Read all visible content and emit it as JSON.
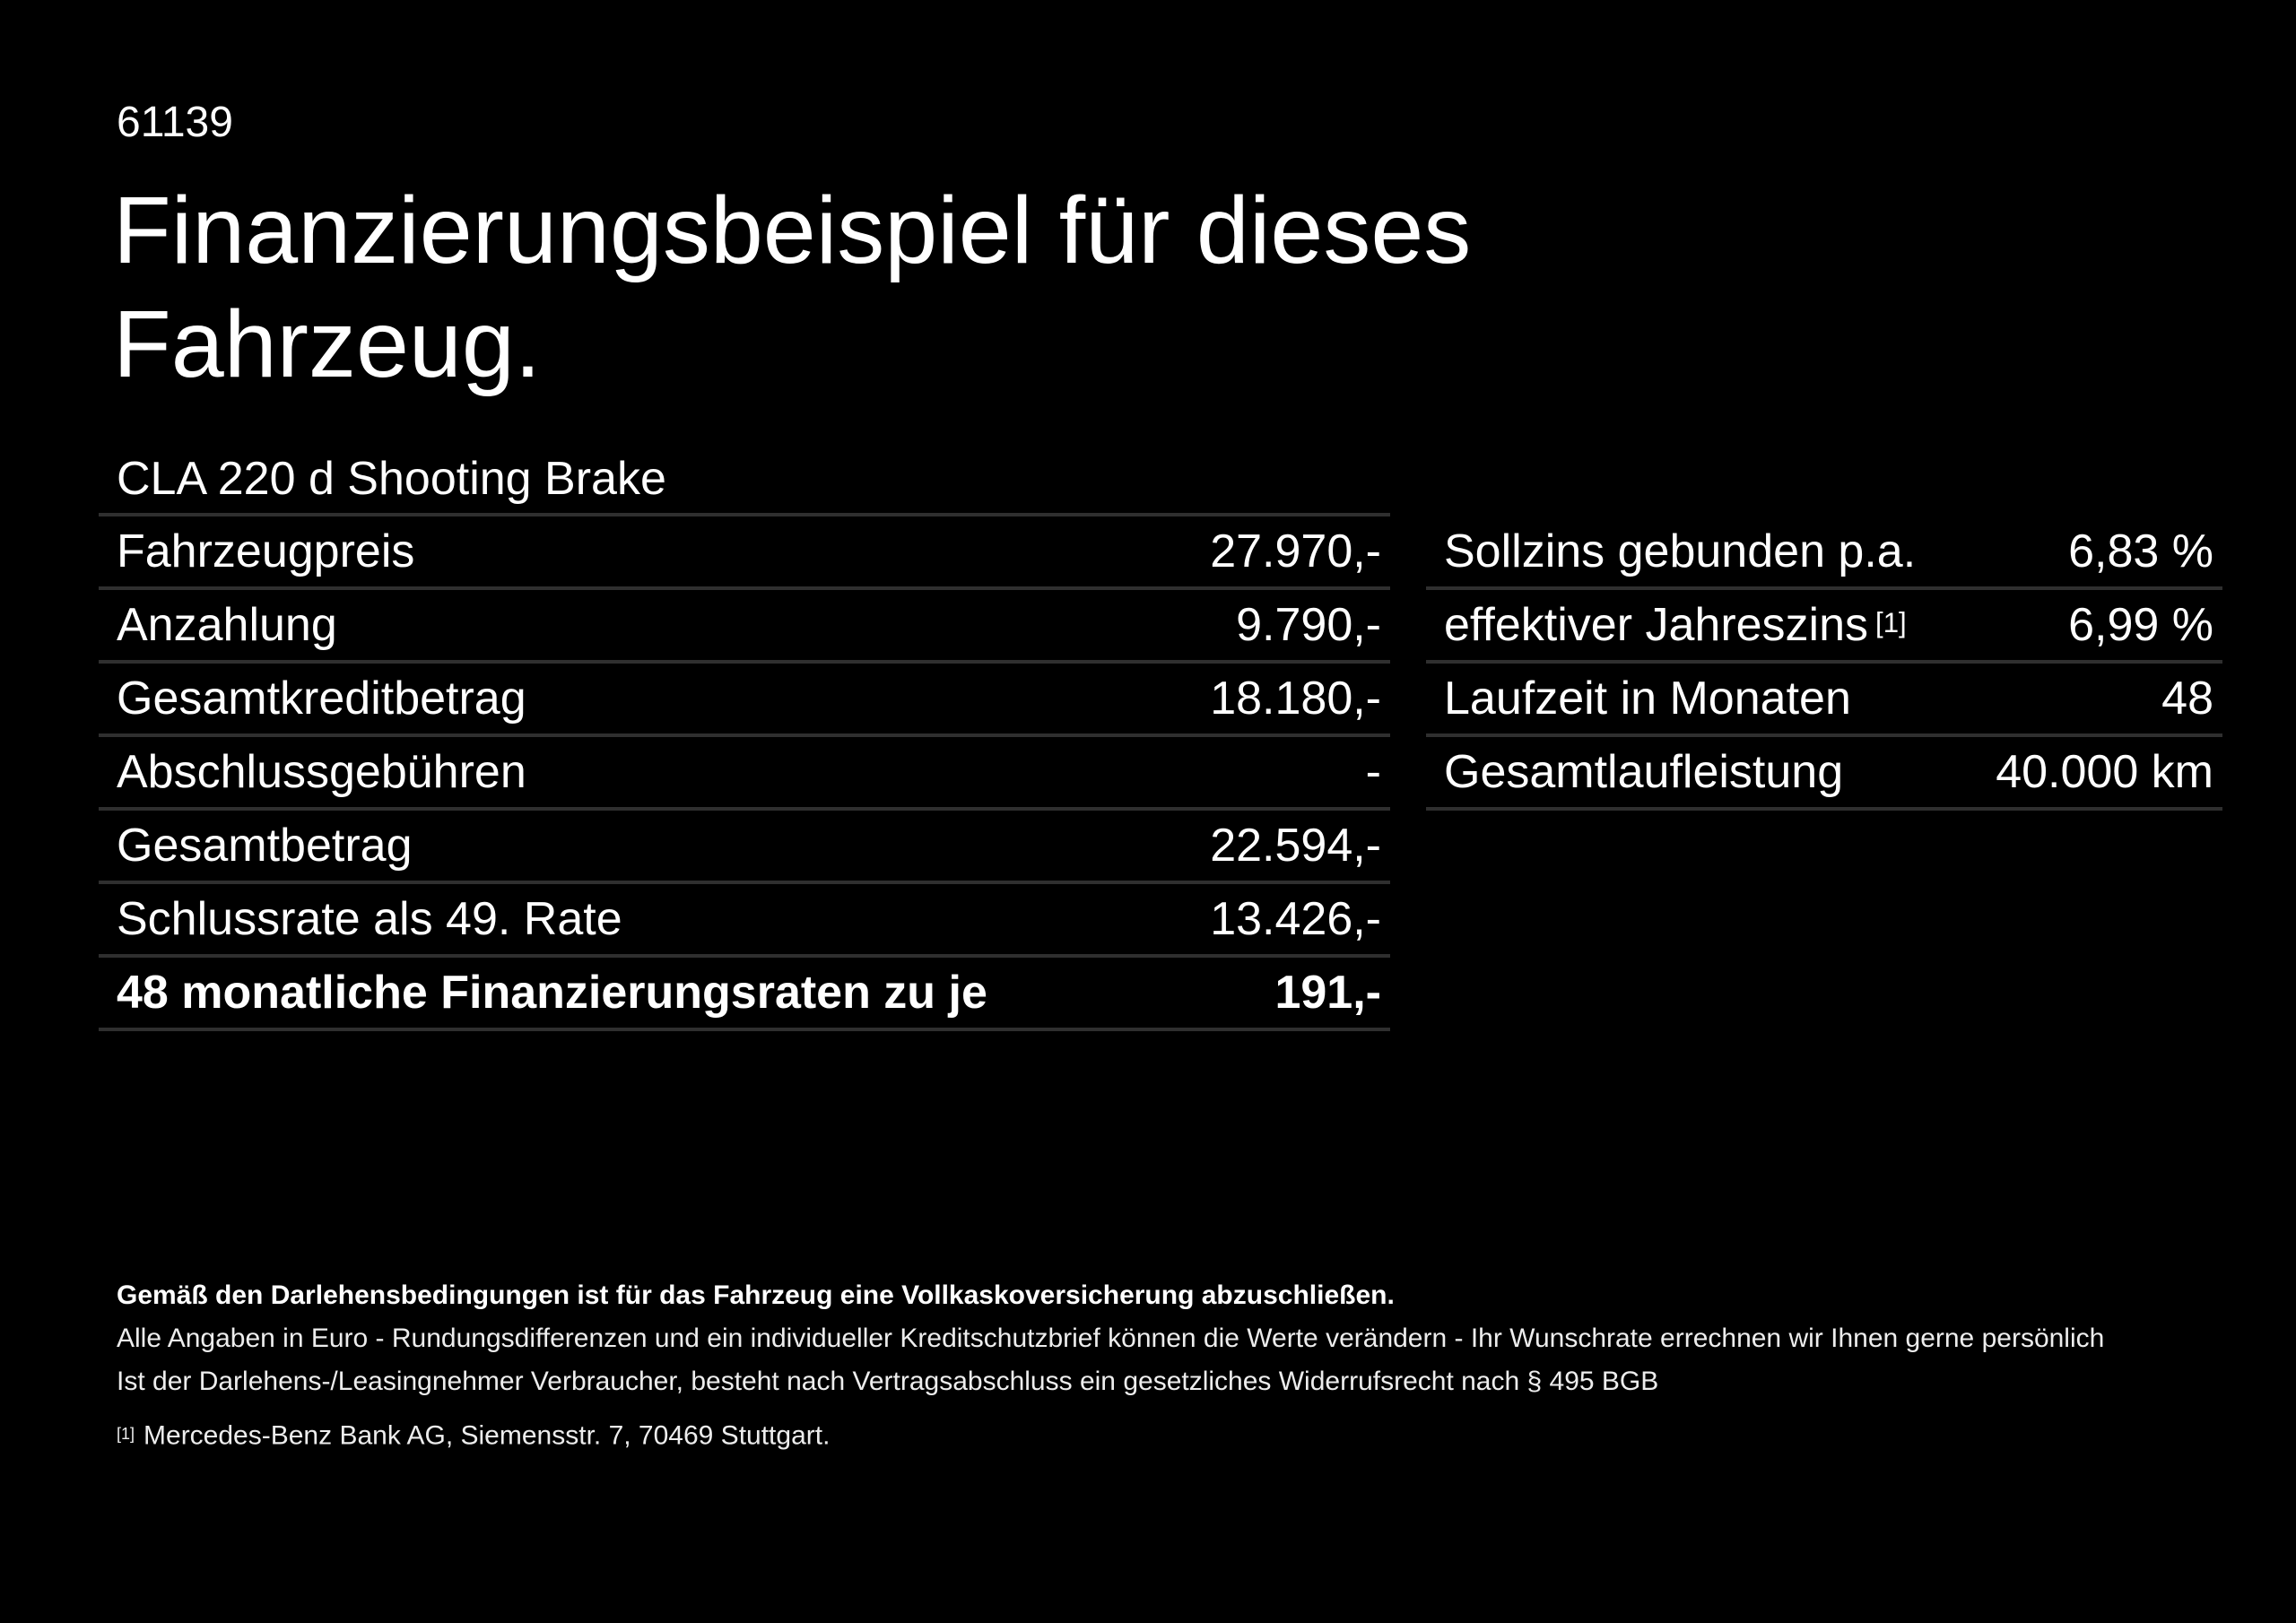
{
  "colors": {
    "background": "#000000",
    "text": "#ffffff",
    "divider": "#2f2f2f"
  },
  "header": {
    "document_number": "61139",
    "title_line1": "Finanzierungsbeispiel für dieses",
    "title_line2": "Fahrzeug.",
    "vehicle_model": "CLA 220 d Shooting Brake"
  },
  "finance_table": {
    "rows": [
      {
        "label": "Fahrzeugpreis",
        "value": "27.970,-"
      },
      {
        "label": "Anzahlung",
        "value": "9.790,-"
      },
      {
        "label": "Gesamtkreditbetrag",
        "value": "18.180,-"
      },
      {
        "label": "Abschlussgebühren",
        "value": "-"
      },
      {
        "label": "Gesamtbetrag",
        "value": "22.594,-"
      },
      {
        "label": "Schlussrate als 49. Rate",
        "value": "13.426,-"
      },
      {
        "label": "48 monatliche Finanzierungsraten zu je",
        "value": "191,-"
      }
    ]
  },
  "conditions_table": {
    "rows": [
      {
        "label": "Sollzins gebunden p.a.",
        "value": "6,83 %"
      },
      {
        "label": "effektiver Jahreszins",
        "marker": "[1]",
        "value": "6,99 %"
      },
      {
        "label": "Laufzeit in Monaten",
        "value": "48"
      },
      {
        "label": "Gesamtlaufleistung",
        "value": "40.000 km"
      }
    ]
  },
  "footer": {
    "insurance_note": "Gemäß den Darlehensbedingungen ist für das Fahrzeug eine Vollkaskoversicherung abzuschließen.",
    "rounding_note": "Alle Angaben in Euro - Rundungsdifferenzen und ein individueller Kreditschutzbrief können die Werte verändern - Ihr Wunschrate errechnen wir Ihnen gerne persönlich",
    "withdrawal_note": "Ist der Darlehens-/Leasingnehmer Verbraucher, besteht nach Vertragsabschluss ein gesetzliches Widerrufsrecht nach § 495 BGB",
    "footnote_marker": "[1]",
    "footnote_text": "Mercedes-Benz Bank AG, Siemensstr. 7, 70469 Stuttgart."
  }
}
